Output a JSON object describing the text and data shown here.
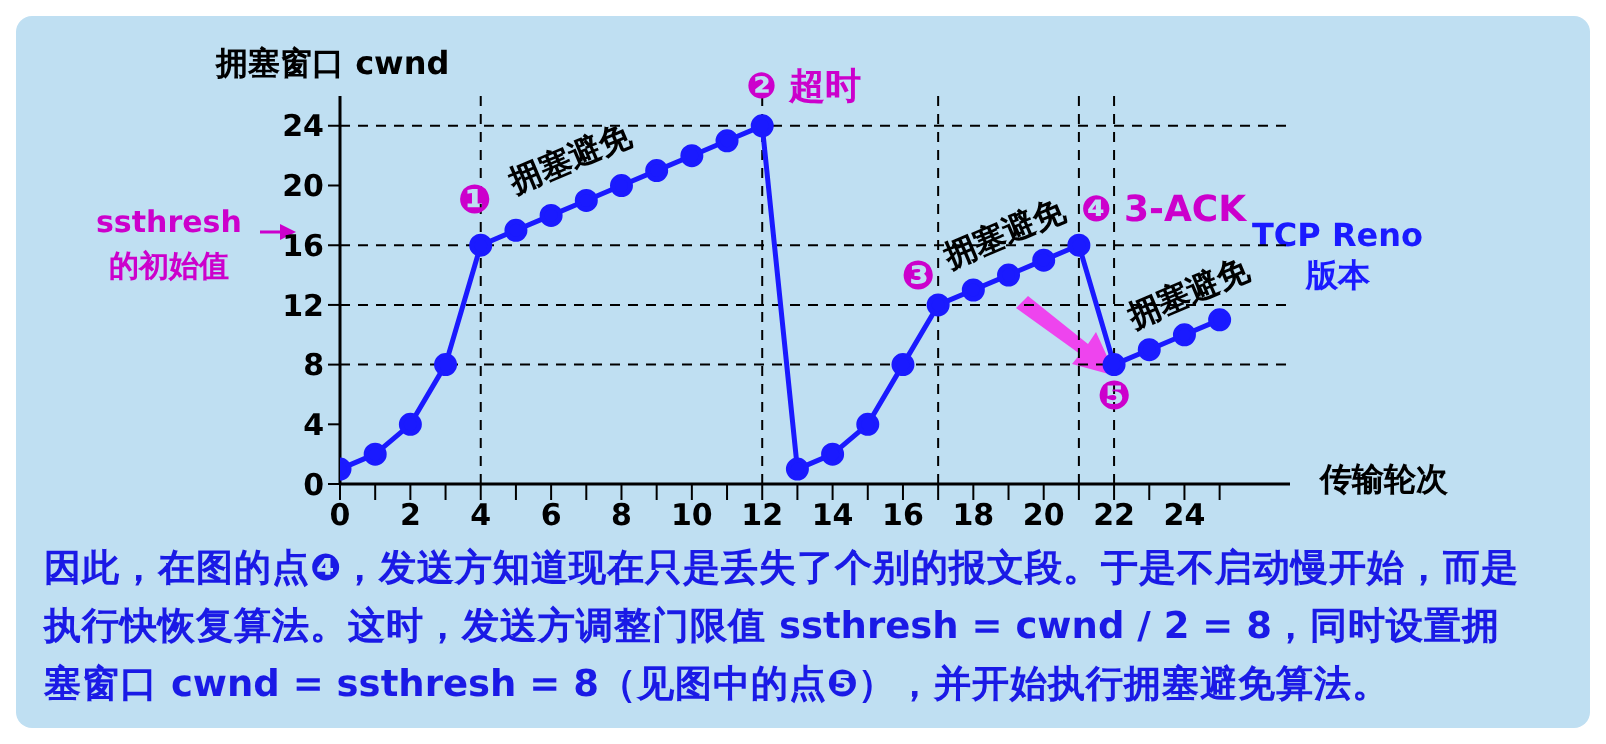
{
  "chart_data": {
    "type": "line",
    "ylabel": "拥塞窗口 cwnd",
    "xlabel": "传输轮次",
    "x": [
      0,
      1,
      2,
      3,
      4,
      5,
      6,
      7,
      8,
      9,
      10,
      11,
      12,
      13,
      14,
      15,
      16,
      17,
      18,
      19,
      20,
      21,
      22,
      23,
      24,
      25
    ],
    "series": [
      {
        "color": "#1a1aff",
        "values": [
          1,
          2,
          4,
          8,
          16,
          17,
          18,
          19,
          20,
          21,
          22,
          23,
          24,
          1,
          2,
          4,
          8,
          12,
          13,
          14,
          15,
          16,
          8,
          9,
          10,
          11
        ]
      }
    ],
    "xlim": [
      0,
      27
    ],
    "xticks": [
      0,
      {
        "value": 1,
        "label": null
      },
      2,
      {
        "value": 3,
        "label": null
      },
      4,
      {
        "value": 5,
        "label": null
      },
      6,
      {
        "value": 7,
        "label": null
      },
      8,
      {
        "value": 9,
        "label": null
      },
      10,
      {
        "value": 11,
        "label": null
      },
      12,
      {
        "value": 13,
        "label": null
      },
      14,
      {
        "value": 15,
        "label": null
      },
      16,
      {
        "value": 17,
        "label": null
      },
      18,
      {
        "value": 19,
        "label": null
      },
      20,
      {
        "value": 21,
        "label": null
      },
      22,
      {
        "value": 23,
        "label": null
      },
      24,
      {
        "value": 25,
        "label": null
      }
    ],
    "ylim": [
      0,
      26
    ],
    "yticks": [
      0,
      4,
      8,
      12,
      16,
      20,
      24
    ],
    "marker": "circle",
    "line_style": "solid",
    "ref_lines": [
      {
        "axis": "y",
        "value": 24,
        "color": "#000000",
        "line_style": "dashed"
      },
      {
        "axis": "y",
        "value": 16,
        "color": "#000000",
        "line_style": "dashed"
      },
      {
        "axis": "y",
        "value": 12,
        "color": "#000000",
        "line_style": "dashed"
      },
      {
        "axis": "y",
        "value": 8,
        "color": "#000000",
        "line_style": "dashed"
      },
      {
        "axis": "x",
        "value": 4,
        "color": "#000000",
        "line_style": "dashed"
      },
      {
        "axis": "x",
        "value": 12,
        "color": "#000000",
        "line_style": "dashed"
      },
      {
        "axis": "x",
        "value": 17,
        "color": "#000000",
        "line_style": "dashed"
      },
      {
        "axis": "x",
        "value": 21,
        "color": "#000000",
        "line_style": "dashed"
      },
      {
        "axis": "x",
        "value": 22,
        "color": "#000000",
        "line_style": "dashed"
      }
    ],
    "annotations": [
      {
        "text": "❶",
        "x": 4,
        "y": 16
      },
      {
        "text": "拥塞避免",
        "x": 7,
        "y": 19
      },
      {
        "text": "❷ 超时",
        "x": 12,
        "y": 24
      },
      {
        "text": "❸",
        "x": 17,
        "y": 12
      },
      {
        "text": "拥塞避免",
        "x": 19,
        "y": 14
      },
      {
        "text": "❹ 3-ACK",
        "x": 21,
        "y": 16
      },
      {
        "text": "拥塞避免",
        "x": 24,
        "y": 10
      },
      {
        "text": "❺",
        "x": 22,
        "y": 8
      },
      "ssthresh\n的初始值",
      "TCP Reno\n版本",
      "因此，在图的点❹，发送方知道现在只是丢失了个别的报文段。于是不启动慢开始，而是执行快恢复算法。这时，发送方调整门限值 ssthresh = cwnd / 2 = 8，同时设置拥塞窗口 cwnd = ssthresh = 8（见图中的点❺），并开始执行拥塞避免算法。"
    ]
  }
}
